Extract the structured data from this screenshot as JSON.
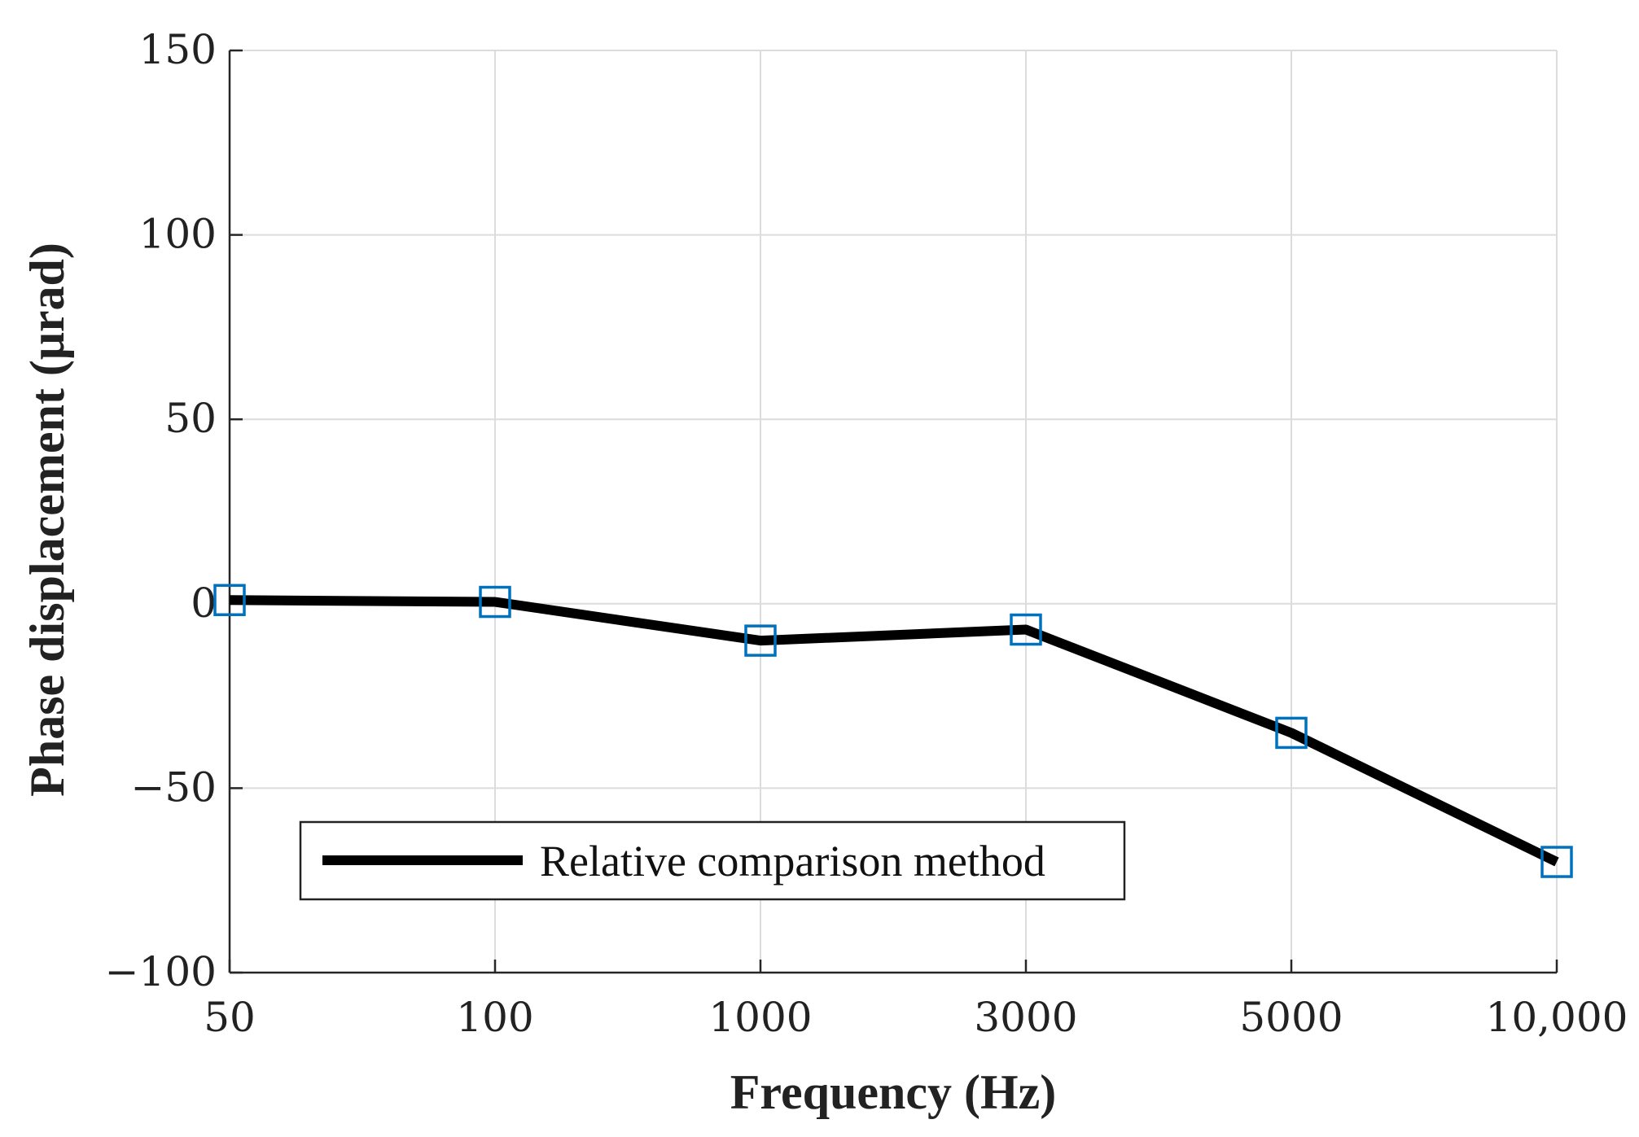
{
  "chart_data": {
    "type": "line",
    "title": "",
    "xlabel": "Frequency (Hz)",
    "ylabel": "Phase displacement (μrad)",
    "categories": [
      "50",
      "100",
      "1000",
      "3000",
      "5000",
      "10,000"
    ],
    "ylim": [
      -100,
      150
    ],
    "yticks": [
      150,
      100,
      50,
      0,
      -50,
      -100
    ],
    "ytick_labels": [
      "150",
      "100",
      "50",
      "0",
      "−50",
      "−100"
    ],
    "grid": true,
    "legend_position": "bottom-left",
    "series": [
      {
        "name": "Relative comparison method",
        "values": [
          1,
          0.5,
          -10,
          -7,
          -35,
          -70
        ],
        "line_color": "#000000",
        "marker": "square",
        "marker_color": "#0072BD"
      }
    ]
  }
}
